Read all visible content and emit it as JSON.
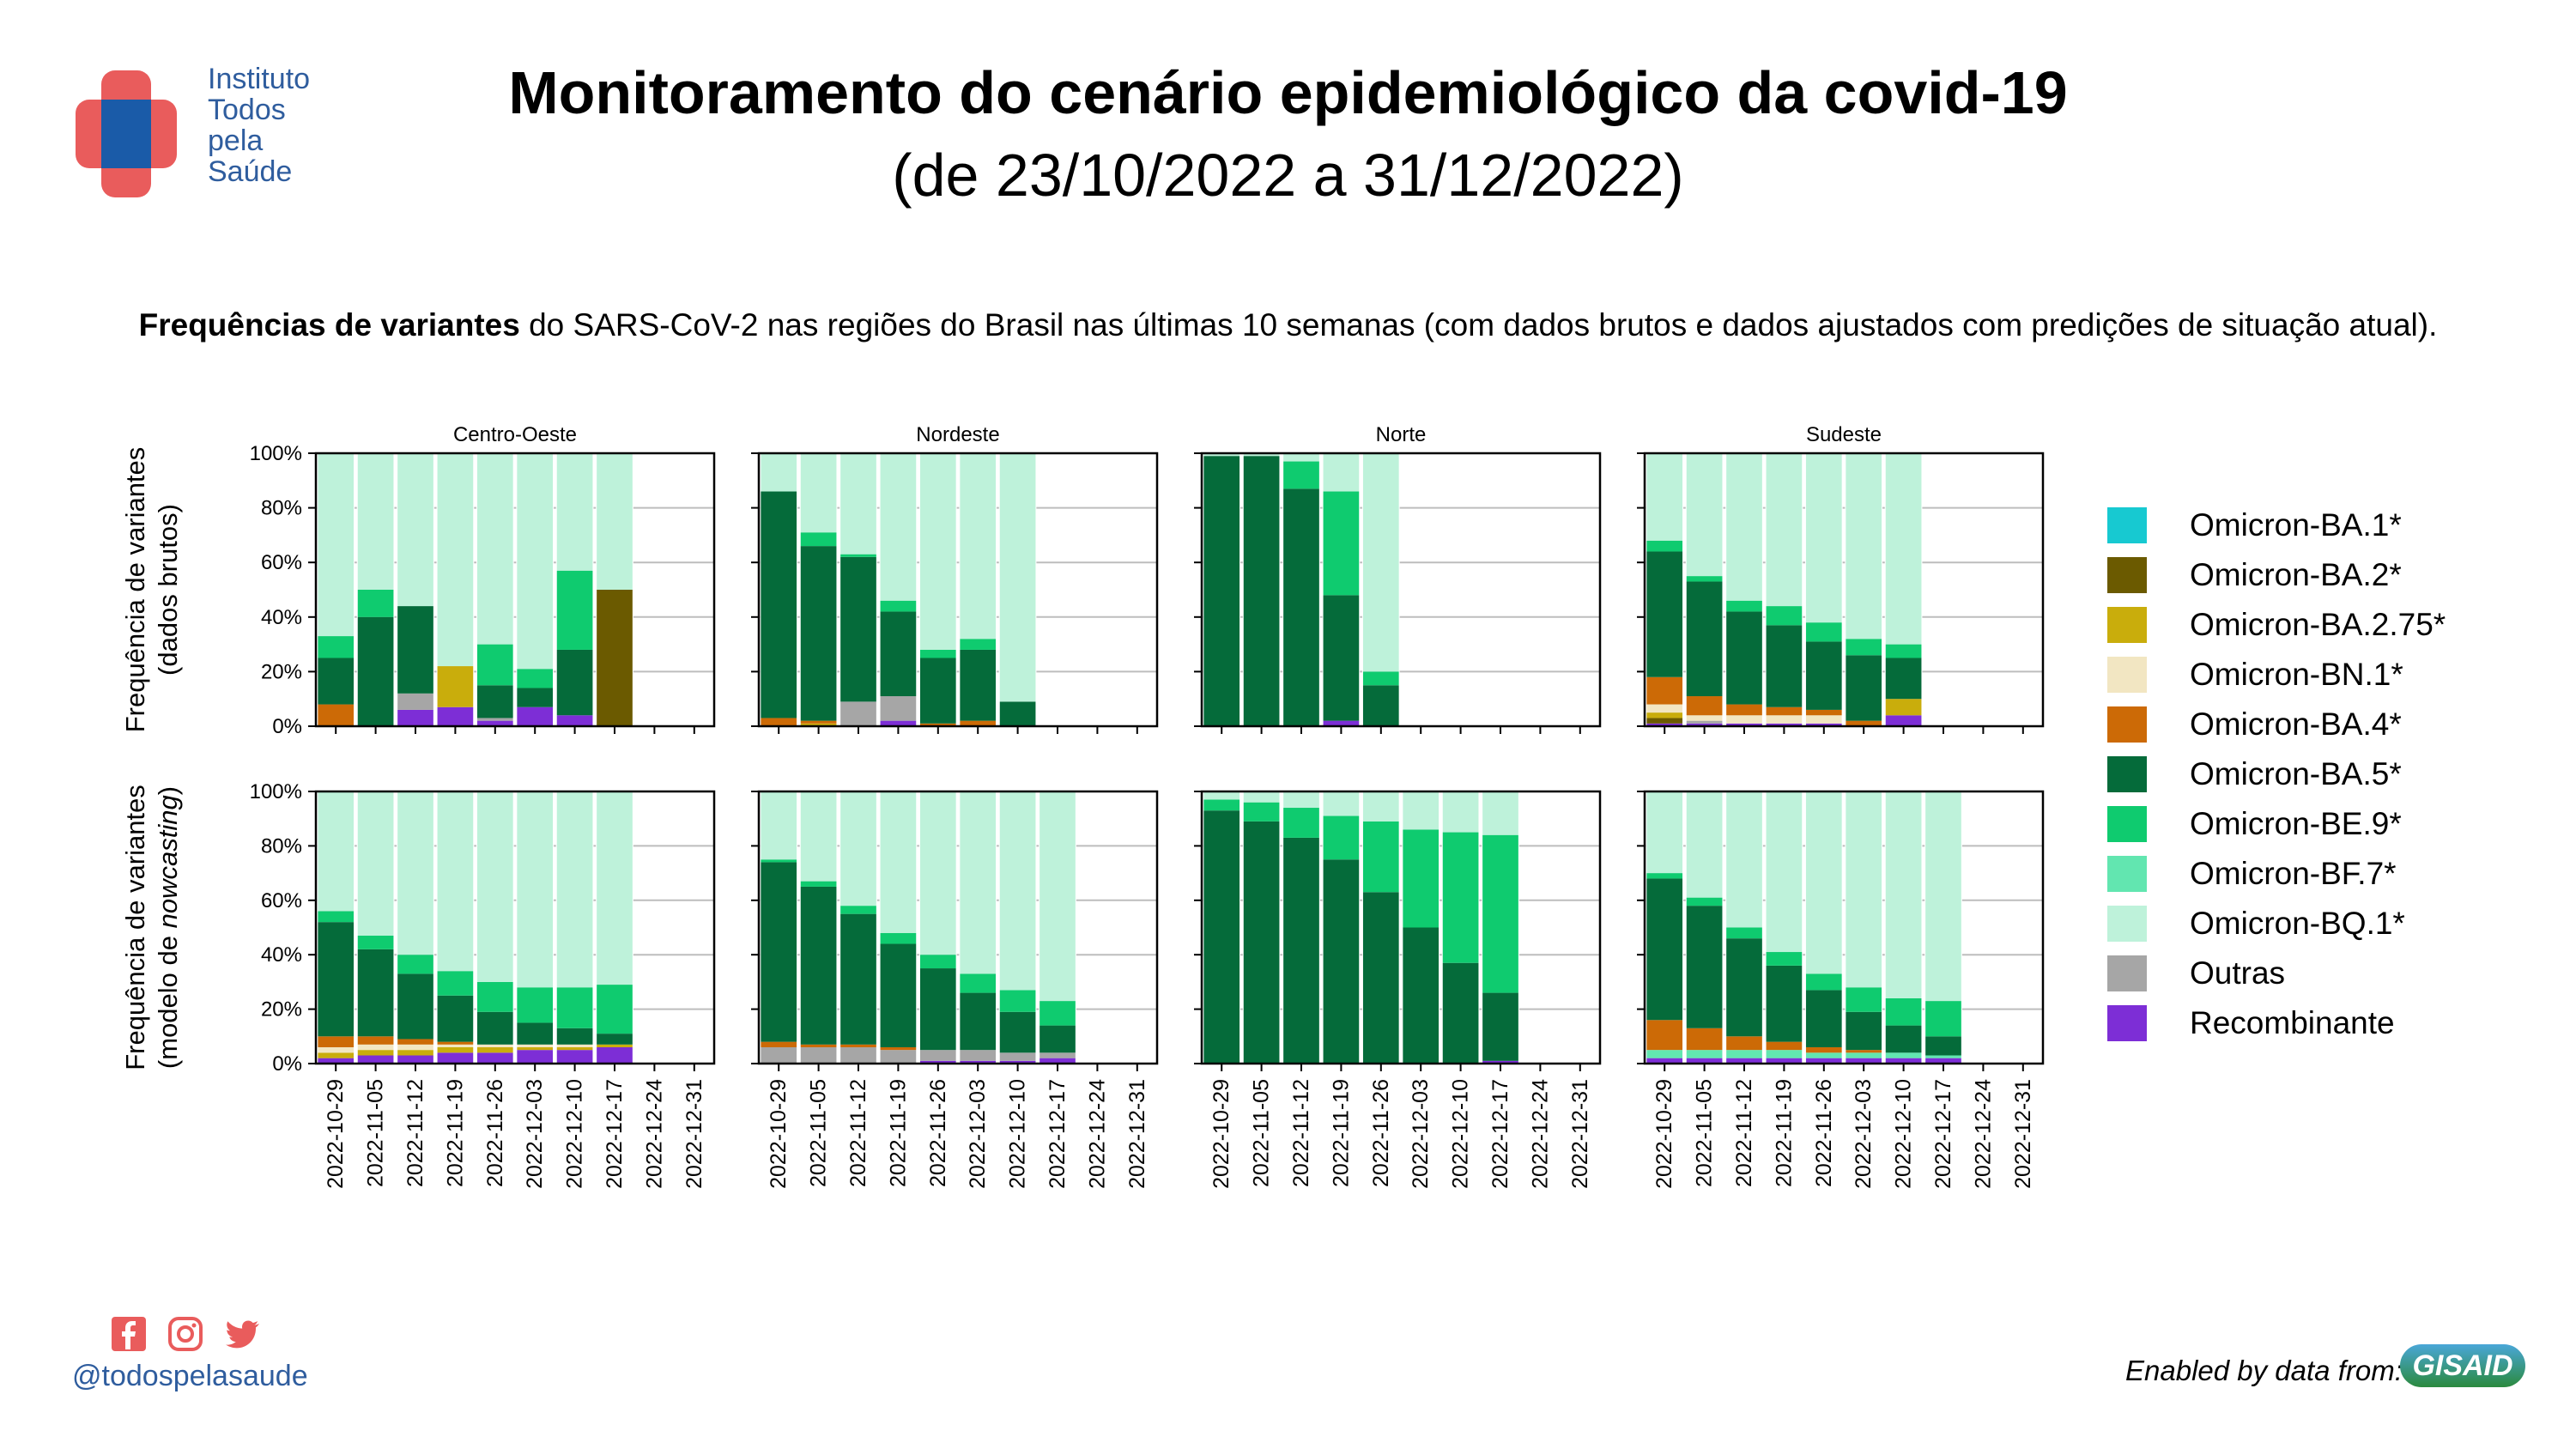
{
  "header": {
    "logo_lines": [
      "Instituto",
      "Todos",
      "pela",
      "Saúde"
    ],
    "title": "Monitoramento do cenário epidemiológico da covid-19",
    "subtitle": "(de 23/10/2022 a 31/12/2022)"
  },
  "description": {
    "bold": "Frequências de variantes",
    "rest": " do SARS-CoV-2 nas regiões do Brasil nas últimas 10 semanas (com dados brutos e dados ajustados com predições de situação atual)."
  },
  "footer": {
    "handle": "@todospelasaude",
    "social_icons": [
      "facebook-icon",
      "instagram-icon",
      "twitter-icon"
    ],
    "enabled_by": "Enabled by data from:",
    "gisaid": "GISAID"
  },
  "chart_data": {
    "type": "bar",
    "stacked": true,
    "categories": [
      "2022-10-29",
      "2022-11-05",
      "2022-11-12",
      "2022-11-19",
      "2022-11-26",
      "2022-12-03",
      "2022-12-10",
      "2022-12-17",
      "2022-12-24",
      "2022-12-31"
    ],
    "ylim": [
      0,
      100
    ],
    "yticks": [
      "0%",
      "20%",
      "40%",
      "60%",
      "80%",
      "100%"
    ],
    "row_labels": [
      [
        "Frequência de variantes",
        "(dados brutos)"
      ],
      [
        "Frequência de variantes",
        "(modelo de nowcasting)"
      ]
    ],
    "regions": [
      "Centro-Oeste",
      "Nordeste",
      "Norte",
      "Sudeste"
    ],
    "legend": [
      {
        "name": "Omicron-BA.1*",
        "color": "#17c9d1"
      },
      {
        "name": "Omicron-BA.2*",
        "color": "#6b5a00"
      },
      {
        "name": "Omicron-BA.2.75*",
        "color": "#c9ad0c"
      },
      {
        "name": "Omicron-BN.1*",
        "color": "#f2e6c2"
      },
      {
        "name": "Omicron-BA.4*",
        "color": "#cc6a06"
      },
      {
        "name": "Omicron-BA.5*",
        "color": "#056b3a"
      },
      {
        "name": "Omicron-BE.9*",
        "color": "#0fcb6f"
      },
      {
        "name": "Omicron-BF.7*",
        "color": "#62e6b0"
      },
      {
        "name": "Omicron-BQ.1*",
        "color": "#bef2da"
      },
      {
        "name": "Outras",
        "color": "#a6a6a6"
      },
      {
        "name": "Recombinante",
        "color": "#7d2ed6"
      }
    ],
    "panels": [
      [
        [
          {
            "Omicron-BA.4*": 8,
            "Omicron-BA.5*": 17,
            "Omicron-BE.9*": 8,
            "Omicron-BQ.1*": 67
          },
          {
            "Omicron-BA.5*": 40,
            "Omicron-BE.9*": 10,
            "Omicron-BQ.1*": 50
          },
          {
            "Recombinante": 6,
            "Outras": 6,
            "Omicron-BA.5*": 32,
            "Omicron-BQ.1*": 56
          },
          {
            "Recombinante": 7,
            "Omicron-BA.2.75*": 15,
            "Omicron-BQ.1*": 78
          },
          {
            "Recombinante": 2,
            "Outras": 1,
            "Omicron-BA.5*": 12,
            "Omicron-BE.9*": 15,
            "Omicron-BQ.1*": 70
          },
          {
            "Recombinante": 7,
            "Omicron-BA.5*": 7,
            "Omicron-BE.9*": 7,
            "Omicron-BQ.1*": 79
          },
          {
            "Recombinante": 4,
            "Omicron-BA.5*": 24,
            "Omicron-BE.9*": 29,
            "Omicron-BQ.1*": 43
          },
          {
            "Omicron-BA.2*": 50,
            "Omicron-BQ.1*": 50
          },
          {},
          {}
        ],
        [
          {
            "Omicron-BA.4*": 3,
            "Omicron-BA.5*": 83,
            "Omicron-BQ.1*": 14
          },
          {
            "Omicron-BA.4*": 1,
            "Omicron-BA.2.75*": 1,
            "Omicron-BA.5*": 64,
            "Omicron-BE.9*": 5,
            "Omicron-BQ.1*": 29
          },
          {
            "Outras": 9,
            "Omicron-BA.5*": 53,
            "Omicron-BE.9*": 1,
            "Omicron-BQ.1*": 37
          },
          {
            "Recombinante": 2,
            "Outras": 9,
            "Omicron-BA.5*": 31,
            "Omicron-BE.9*": 4,
            "Omicron-BQ.1*": 54
          },
          {
            "Omicron-BA.4*": 1,
            "Omicron-BA.5*": 24,
            "Omicron-BE.9*": 3,
            "Omicron-BQ.1*": 72
          },
          {
            "Omicron-BA.4*": 2,
            "Omicron-BA.5*": 26,
            "Omicron-BE.9*": 4,
            "Omicron-BQ.1*": 68
          },
          {
            "Omicron-BA.5*": 9,
            "Omicron-BQ.1*": 91
          },
          {},
          {},
          {}
        ],
        [
          {
            "Omicron-BA.5*": 99,
            "Omicron-BQ.1*": 1
          },
          {
            "Omicron-BA.5*": 99,
            "Omicron-BQ.1*": 1
          },
          {
            "Omicron-BA.5*": 87,
            "Omicron-BE.9*": 10,
            "Omicron-BQ.1*": 3
          },
          {
            "Omicron-BA.5*": 46,
            "Recombinante": 2,
            "Omicron-BE.9*": 38,
            "Omicron-BQ.1*": 14
          },
          {
            "Omicron-BA.5*": 15,
            "Omicron-BE.9*": 5,
            "Omicron-BQ.1*": 80
          },
          {},
          {},
          {},
          {},
          {}
        ],
        [
          {
            "Recombinante": 1,
            "Omicron-BA.2*": 2,
            "Omicron-BA.2.75*": 2,
            "Omicron-BN.1*": 3,
            "Omicron-BA.4*": 10,
            "Omicron-BA.5*": 46,
            "Omicron-BE.9*": 4,
            "Omicron-BQ.1*": 32
          },
          {
            "Recombinante": 1,
            "Outras": 1,
            "Omicron-BN.1*": 2,
            "Omicron-BA.4*": 7,
            "Omicron-BA.5*": 42,
            "Omicron-BE.9*": 2,
            "Omicron-BQ.1*": 45
          },
          {
            "Recombinante": 1,
            "Omicron-BN.1*": 3,
            "Omicron-BA.4*": 4,
            "Omicron-BA.5*": 34,
            "Omicron-BE.9*": 4,
            "Omicron-BQ.1*": 54
          },
          {
            "Recombinante": 1,
            "Omicron-BN.1*": 3,
            "Omicron-BA.4*": 3,
            "Omicron-BA.5*": 30,
            "Omicron-BE.9*": 7,
            "Omicron-BQ.1*": 56
          },
          {
            "Recombinante": 1,
            "Omicron-BN.1*": 3,
            "Omicron-BA.4*": 2,
            "Omicron-BA.5*": 25,
            "Omicron-BE.9*": 7,
            "Omicron-BQ.1*": 62
          },
          {
            "Omicron-BA.4*": 2,
            "Omicron-BA.5*": 24,
            "Omicron-BE.9*": 6,
            "Omicron-BQ.1*": 68
          },
          {
            "Recombinante": 4,
            "Omicron-BA.2.75*": 6,
            "Omicron-BA.5*": 15,
            "Omicron-BE.9*": 5,
            "Omicron-BQ.1*": 70
          },
          {},
          {},
          {}
        ]
      ],
      [
        [
          {
            "Recombinante": 2,
            "Omicron-BA.2.75*": 2,
            "Omicron-BN.1*": 2,
            "Omicron-BA.4*": 4,
            "Omicron-BA.5*": 42,
            "Omicron-BE.9*": 4,
            "Omicron-BQ.1*": 44
          },
          {
            "Recombinante": 3,
            "Omicron-BA.2.75*": 2,
            "Omicron-BN.1*": 2,
            "Omicron-BA.4*": 3,
            "Omicron-BA.5*": 32,
            "Omicron-BE.9*": 5,
            "Omicron-BQ.1*": 53
          },
          {
            "Recombinante": 3,
            "Omicron-BA.2.75*": 2,
            "Omicron-BN.1*": 2,
            "Omicron-BA.4*": 2,
            "Omicron-BA.5*": 24,
            "Omicron-BE.9*": 7,
            "Omicron-BQ.1*": 60
          },
          {
            "Recombinante": 4,
            "Omicron-BA.2.75*": 2,
            "Omicron-BN.1*": 1,
            "Omicron-BA.4*": 1,
            "Omicron-BA.5*": 17,
            "Omicron-BE.9*": 9,
            "Omicron-BQ.1*": 66
          },
          {
            "Recombinante": 4,
            "Omicron-BA.2.75*": 2,
            "Omicron-BN.1*": 1,
            "Omicron-BA.5*": 12,
            "Omicron-BE.9*": 11,
            "Omicron-BQ.1*": 70
          },
          {
            "Recombinante": 5,
            "Omicron-BA.2.75*": 1,
            "Omicron-BN.1*": 1,
            "Omicron-BA.5*": 8,
            "Omicron-BE.9*": 13,
            "Omicron-BQ.1*": 72
          },
          {
            "Recombinante": 5,
            "Omicron-BA.2.75*": 1,
            "Omicron-BN.1*": 1,
            "Omicron-BA.5*": 6,
            "Omicron-BE.9*": 15,
            "Omicron-BQ.1*": 72
          },
          {
            "Recombinante": 6,
            "Omicron-BA.2.75*": 1,
            "Omicron-BA.5*": 4,
            "Omicron-BE.9*": 18,
            "Omicron-BQ.1*": 71
          },
          {},
          {}
        ],
        [
          {
            "Omicron-BA.4*": 2,
            "Outras": 6,
            "Omicron-BA.5*": 66,
            "Omicron-BE.9*": 1,
            "Omicron-BQ.1*": 25
          },
          {
            "Omicron-BA.4*": 1,
            "Outras": 6,
            "Omicron-BA.5*": 58,
            "Omicron-BE.9*": 2,
            "Omicron-BQ.1*": 33
          },
          {
            "Omicron-BA.4*": 1,
            "Outras": 6,
            "Omicron-BA.5*": 48,
            "Omicron-BE.9*": 3,
            "Omicron-BQ.1*": 42
          },
          {
            "Omicron-BA.4*": 1,
            "Outras": 5,
            "Omicron-BA.5*": 38,
            "Omicron-BE.9*": 4,
            "Omicron-BQ.1*": 52
          },
          {
            "Recombinante": 1,
            "Outras": 4,
            "Omicron-BA.5*": 30,
            "Omicron-BE.9*": 5,
            "Omicron-BQ.1*": 60
          },
          {
            "Recombinante": 1,
            "Outras": 4,
            "Omicron-BA.5*": 21,
            "Omicron-BE.9*": 7,
            "Omicron-BQ.1*": 67
          },
          {
            "Recombinante": 1,
            "Outras": 3,
            "Omicron-BA.5*": 15,
            "Omicron-BE.9*": 8,
            "Omicron-BQ.1*": 73
          },
          {
            "Recombinante": 2,
            "Outras": 2,
            "Omicron-BA.5*": 10,
            "Omicron-BE.9*": 9,
            "Omicron-BQ.1*": 77
          },
          {},
          {}
        ],
        [
          {
            "Omicron-BA.5*": 93,
            "Omicron-BE.9*": 4,
            "Omicron-BQ.1*": 3
          },
          {
            "Omicron-BA.5*": 89,
            "Omicron-BE.9*": 7,
            "Omicron-BQ.1*": 4
          },
          {
            "Omicron-BA.5*": 83,
            "Omicron-BE.9*": 11,
            "Omicron-BQ.1*": 6
          },
          {
            "Omicron-BA.5*": 75,
            "Omicron-BE.9*": 16,
            "Omicron-BQ.1*": 9
          },
          {
            "Omicron-BA.5*": 63,
            "Omicron-BE.9*": 26,
            "Omicron-BQ.1*": 11
          },
          {
            "Omicron-BA.5*": 50,
            "Omicron-BE.9*": 36,
            "Omicron-BQ.1*": 14
          },
          {
            "Omicron-BA.5*": 37,
            "Omicron-BE.9*": 48,
            "Omicron-BQ.1*": 15
          },
          {
            "Recombinante": 1,
            "Omicron-BA.5*": 25,
            "Omicron-BE.9*": 58,
            "Omicron-BQ.1*": 16
          },
          {},
          {}
        ],
        [
          {
            "Recombinante": 2,
            "Omicron-BF.7*": 3,
            "Omicron-BA.4*": 11,
            "Omicron-BA.5*": 52,
            "Omicron-BE.9*": 2,
            "Omicron-BQ.1*": 30
          },
          {
            "Recombinante": 2,
            "Omicron-BF.7*": 3,
            "Omicron-BA.4*": 8,
            "Omicron-BA.5*": 45,
            "Omicron-BE.9*": 3,
            "Omicron-BQ.1*": 39
          },
          {
            "Recombinante": 2,
            "Omicron-BF.7*": 3,
            "Omicron-BA.4*": 5,
            "Omicron-BA.5*": 36,
            "Omicron-BE.9*": 4,
            "Omicron-BQ.1*": 50
          },
          {
            "Recombinante": 2,
            "Omicron-BF.7*": 3,
            "Omicron-BA.4*": 3,
            "Omicron-BA.5*": 28,
            "Omicron-BE.9*": 5,
            "Omicron-BQ.1*": 59
          },
          {
            "Recombinante": 2,
            "Omicron-BF.7*": 2,
            "Omicron-BA.4*": 2,
            "Omicron-BA.5*": 21,
            "Omicron-BE.9*": 6,
            "Omicron-BQ.1*": 67
          },
          {
            "Recombinante": 2,
            "Omicron-BF.7*": 2,
            "Omicron-BA.4*": 1,
            "Omicron-BA.5*": 14,
            "Omicron-BE.9*": 9,
            "Omicron-BQ.1*": 72
          },
          {
            "Recombinante": 2,
            "Omicron-BF.7*": 2,
            "Omicron-BA.5*": 10,
            "Omicron-BE.9*": 10,
            "Omicron-BQ.1*": 76
          },
          {
            "Recombinante": 2,
            "Omicron-BF.7*": 1,
            "Omicron-BA.5*": 7,
            "Omicron-BE.9*": 13,
            "Omicron-BQ.1*": 77
          },
          {},
          {}
        ]
      ]
    ]
  }
}
